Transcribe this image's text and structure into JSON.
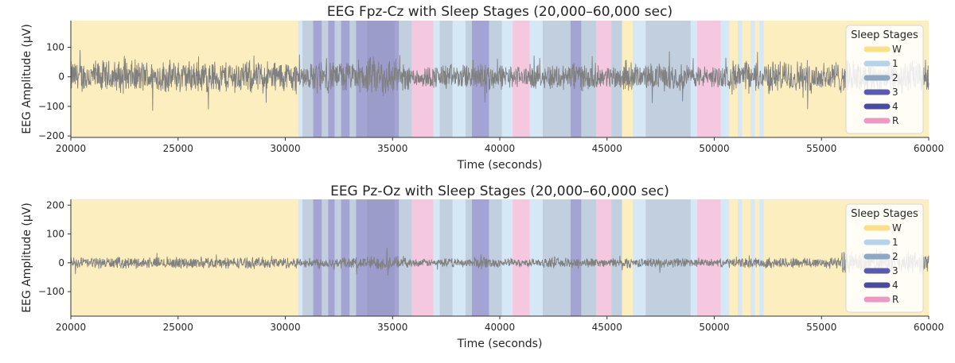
{
  "chart_data": [
    {
      "type": "line",
      "title": "EEG Fpz-Cz with Sleep Stages (20,000–60,000 sec)",
      "xlabel": "Time (seconds)",
      "ylabel": "EEG Amplitude (µV)",
      "xlim": [
        20000,
        60000
      ],
      "ylim": [
        -205,
        190
      ],
      "xticks": [
        20000,
        25000,
        30000,
        35000,
        40000,
        45000,
        50000,
        55000,
        60000
      ],
      "yticks": [
        -200,
        -100,
        0,
        100
      ],
      "series": [
        {
          "name": "Fpz-Cz",
          "color": "#808080",
          "typical_amplitude_uv": 60,
          "peak_amplitude_uv": 190
        }
      ]
    },
    {
      "type": "line",
      "title": "EEG Pz-Oz with Sleep Stages (20,000–60,000 sec)",
      "xlabel": "Time (seconds)",
      "ylabel": "EEG Amplitude (µV)",
      "xlim": [
        20000,
        60000
      ],
      "ylim": [
        -185,
        220
      ],
      "xticks": [
        20000,
        25000,
        30000,
        35000,
        40000,
        45000,
        50000,
        55000,
        60000
      ],
      "yticks": [
        -100,
        0,
        100,
        200
      ],
      "series": [
        {
          "name": "Pz-Oz",
          "color": "#808080",
          "typical_amplitude_uv": 22,
          "peak_amplitude_uv": 200
        }
      ]
    }
  ],
  "legend": {
    "title": "Sleep Stages",
    "position": "top-right",
    "items": [
      {
        "label": "W",
        "color": "#f9e08a"
      },
      {
        "label": "1",
        "color": "#b4d4ec"
      },
      {
        "label": "2",
        "color": "#8ea8c4"
      },
      {
        "label": "3",
        "color": "#5a5ab0"
      },
      {
        "label": "4",
        "color": "#4b4b9e"
      },
      {
        "label": "R",
        "color": "#ec9ac4"
      }
    ]
  },
  "stage_colors": {
    "W": "#f9e08a",
    "1": "#b4d4ec",
    "2": "#8ea8c4",
    "3": "#5a5ab0",
    "4": "#4b4b9e",
    "R": "#ec9ac4"
  },
  "sleep_stages": [
    {
      "start": 20000,
      "end": 30600,
      "stage": "W"
    },
    {
      "start": 30600,
      "end": 30800,
      "stage": "1"
    },
    {
      "start": 30800,
      "end": 31300,
      "stage": "2"
    },
    {
      "start": 31300,
      "end": 31700,
      "stage": "3"
    },
    {
      "start": 31700,
      "end": 32000,
      "stage": "2"
    },
    {
      "start": 32000,
      "end": 32300,
      "stage": "3"
    },
    {
      "start": 32300,
      "end": 32600,
      "stage": "2"
    },
    {
      "start": 32600,
      "end": 33000,
      "stage": "3"
    },
    {
      "start": 33000,
      "end": 33300,
      "stage": "2"
    },
    {
      "start": 33300,
      "end": 33800,
      "stage": "3"
    },
    {
      "start": 33800,
      "end": 35100,
      "stage": "4"
    },
    {
      "start": 35100,
      "end": 35300,
      "stage": "3"
    },
    {
      "start": 35300,
      "end": 35900,
      "stage": "2"
    },
    {
      "start": 35900,
      "end": 36900,
      "stage": "R"
    },
    {
      "start": 36900,
      "end": 37200,
      "stage": "1"
    },
    {
      "start": 37200,
      "end": 37800,
      "stage": "2"
    },
    {
      "start": 37800,
      "end": 38400,
      "stage": "1"
    },
    {
      "start": 38400,
      "end": 38700,
      "stage": "2"
    },
    {
      "start": 38700,
      "end": 39500,
      "stage": "3"
    },
    {
      "start": 39500,
      "end": 40100,
      "stage": "2"
    },
    {
      "start": 40100,
      "end": 40600,
      "stage": "1"
    },
    {
      "start": 40600,
      "end": 41400,
      "stage": "R"
    },
    {
      "start": 41400,
      "end": 42000,
      "stage": "1"
    },
    {
      "start": 42000,
      "end": 43300,
      "stage": "2"
    },
    {
      "start": 43300,
      "end": 43800,
      "stage": "3"
    },
    {
      "start": 43800,
      "end": 44500,
      "stage": "2"
    },
    {
      "start": 44500,
      "end": 45200,
      "stage": "R"
    },
    {
      "start": 45200,
      "end": 45700,
      "stage": "2"
    },
    {
      "start": 45700,
      "end": 46200,
      "stage": "W"
    },
    {
      "start": 46200,
      "end": 46800,
      "stage": "1"
    },
    {
      "start": 46800,
      "end": 48900,
      "stage": "2"
    },
    {
      "start": 48900,
      "end": 49200,
      "stage": "1"
    },
    {
      "start": 49200,
      "end": 50300,
      "stage": "R"
    },
    {
      "start": 50300,
      "end": 50700,
      "stage": "1"
    },
    {
      "start": 50700,
      "end": 51100,
      "stage": "W"
    },
    {
      "start": 51100,
      "end": 51300,
      "stage": "1"
    },
    {
      "start": 51300,
      "end": 51700,
      "stage": "W"
    },
    {
      "start": 51700,
      "end": 51900,
      "stage": "1"
    },
    {
      "start": 51900,
      "end": 52100,
      "stage": "W"
    },
    {
      "start": 52100,
      "end": 52300,
      "stage": "1"
    },
    {
      "start": 52300,
      "end": 60000,
      "stage": "W"
    }
  ]
}
